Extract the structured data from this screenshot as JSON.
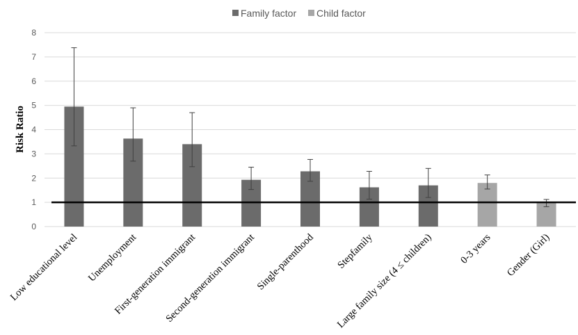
{
  "chart_data": {
    "type": "bar",
    "ylabel": "Risk Ratio",
    "ylim": [
      0,
      8
    ],
    "yticks": [
      0,
      1,
      2,
      3,
      4,
      5,
      6,
      7,
      8
    ],
    "grid": true,
    "legend_position": "top",
    "reference_line": 1,
    "legend": [
      {
        "name": "Family factor",
        "color": "#6b6b6b"
      },
      {
        "name": "Child factor",
        "color": "#a6a6a6"
      }
    ],
    "categories": [
      "Low educational level",
      "Unemployment",
      "First-generation immigrant",
      "Second-generation immigrant",
      "Single-parenthood",
      "Stepfamily",
      "Large family size (4 ≤ children)",
      "0-3 years",
      "Gender (Girl)"
    ],
    "group": [
      "Family factor",
      "Family factor",
      "Family factor",
      "Family factor",
      "Family factor",
      "Family factor",
      "Family factor",
      "Child factor",
      "Child factor"
    ],
    "values": [
      4.95,
      3.63,
      3.4,
      1.93,
      2.28,
      1.62,
      1.7,
      1.8,
      0.97
    ],
    "error_low": [
      3.33,
      2.7,
      2.47,
      1.53,
      1.87,
      1.13,
      1.2,
      1.55,
      0.82
    ],
    "error_high": [
      7.38,
      4.9,
      4.7,
      2.45,
      2.77,
      2.28,
      2.4,
      2.13,
      1.12
    ]
  }
}
